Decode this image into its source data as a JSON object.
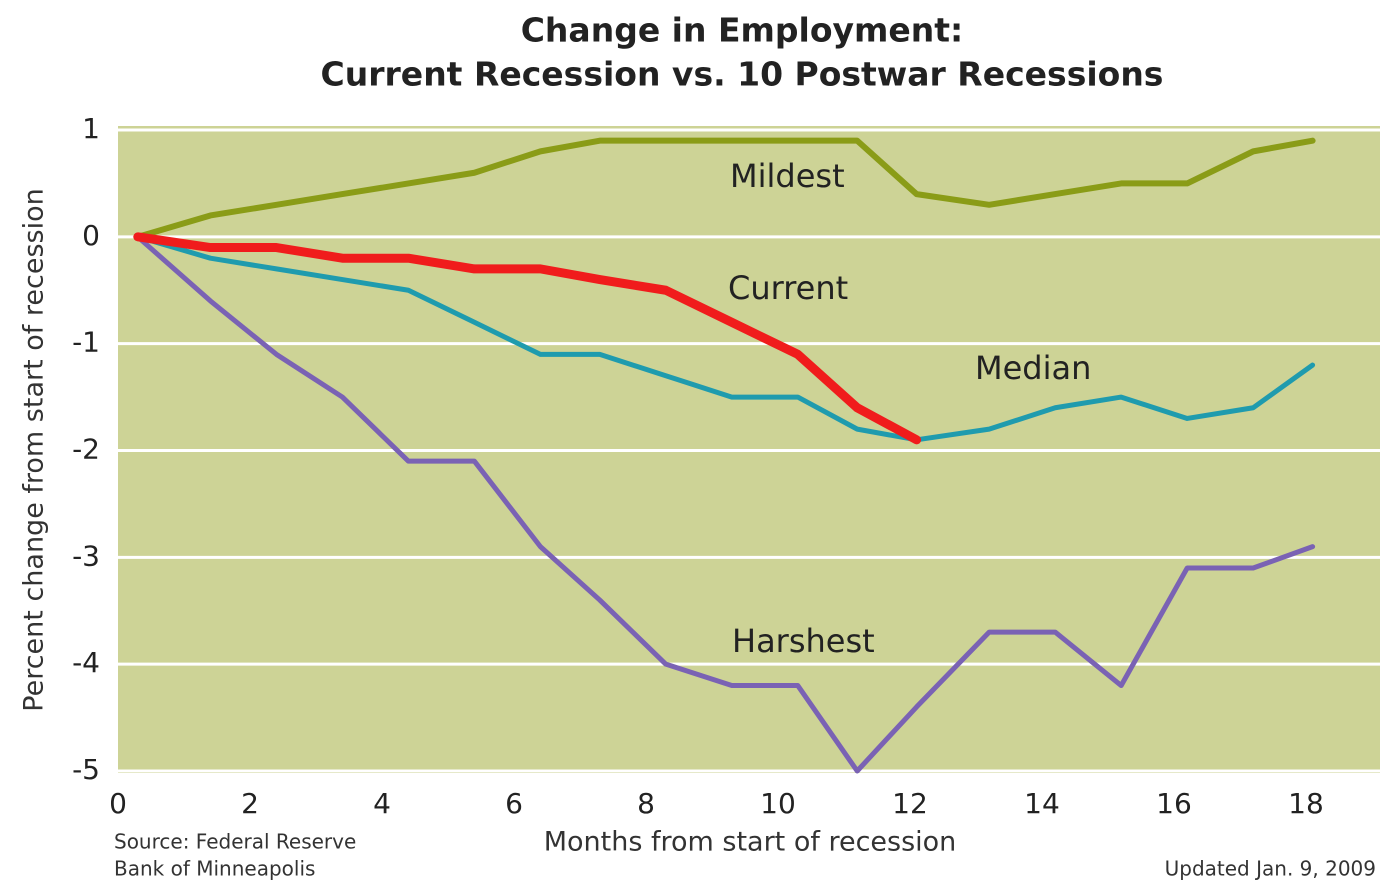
{
  "chart_data": {
    "type": "line",
    "title": "Change in Employment:",
    "subtitle": "Current Recession vs. 10 Postwar Recessions",
    "x_label": "Months from start of recession",
    "y_label": "Percent change from start of recession",
    "source": [
      "Source: Federal Reserve",
      "Bank of Minneapolis"
    ],
    "note": "Updated Jan. 9, 2009",
    "x": [
      0.3,
      1.4,
      2.4,
      3.4,
      4.4,
      5.4,
      6.4,
      7.3,
      8.3,
      9.3,
      10.3,
      11.2,
      12.1,
      13.2,
      14.2,
      15.2,
      16.2,
      17.2,
      18.1
    ],
    "series": [
      {
        "name": "Mildest",
        "color": "#8a9c17",
        "values": [
          0,
          0.2,
          0.3,
          0.4,
          0.5,
          0.6,
          0.8,
          0.9,
          0.9,
          0.9,
          0.9,
          0.9,
          0.4,
          0.3,
          0.4,
          0.5,
          0.5,
          0.8,
          0.9
        ]
      },
      {
        "name": "Current",
        "color": "#f01c1c",
        "values": [
          0,
          -0.1,
          -0.1,
          -0.2,
          -0.2,
          -0.3,
          -0.3,
          -0.4,
          -0.5,
          -0.8,
          -1.1,
          -1.6,
          -1.9,
          null,
          null,
          null,
          null,
          null,
          null
        ]
      },
      {
        "name": "Median",
        "color": "#1f9bae",
        "values": [
          0,
          -0.2,
          -0.3,
          -0.4,
          -0.5,
          -0.8,
          -1.1,
          -1.1,
          -1.3,
          -1.5,
          -1.5,
          -1.8,
          -1.9,
          -1.8,
          -1.6,
          -1.5,
          -1.7,
          -1.6,
          -1.2
        ]
      },
      {
        "name": "Harshest",
        "color": "#7a62b4",
        "values": [
          0,
          -0.6,
          -1.1,
          -1.5,
          -2.1,
          -2.1,
          -2.9,
          -3.4,
          -4.0,
          -4.2,
          -4.2,
          -5.0,
          -4.4,
          -3.7,
          -3.7,
          -4.2,
          -3.1,
          -3.1,
          -2.9
        ]
      }
    ],
    "xlim": [
      0,
      19
    ],
    "xticks": [
      0,
      2,
      4,
      6,
      8,
      10,
      12,
      14,
      16,
      18
    ],
    "ylim": [
      -5,
      1
    ],
    "yticks": [
      -5,
      -4,
      -3,
      -2,
      -1,
      0,
      1
    ],
    "grid": true,
    "background": "#cdd396"
  }
}
